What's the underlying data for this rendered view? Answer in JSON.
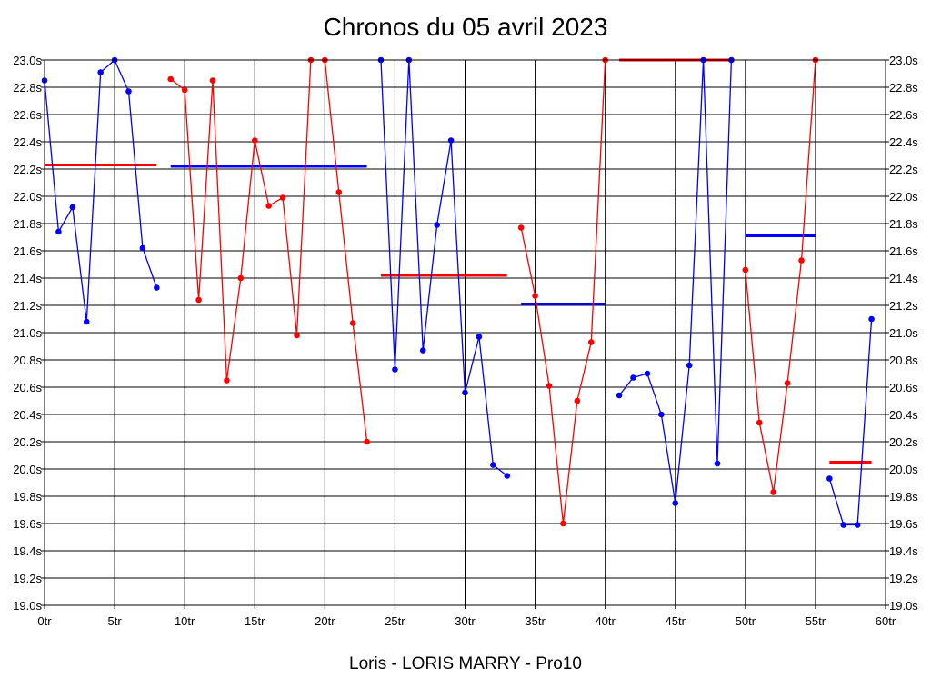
{
  "chart_data": {
    "type": "line",
    "title": "Chronos du 05 avril 2023",
    "xlabel": "Loris - LORIS MARRY - Pro10",
    "ylabel": "",
    "xlim": [
      0,
      60
    ],
    "ylim": [
      19.0,
      23.0
    ],
    "x_ticks": [
      0,
      5,
      10,
      15,
      20,
      25,
      30,
      35,
      40,
      45,
      50,
      55,
      60
    ],
    "x_tick_labels": [
      "0tr",
      "5tr",
      "10tr",
      "15tr",
      "20tr",
      "25tr",
      "30tr",
      "35tr",
      "40tr",
      "45tr",
      "50tr",
      "55tr",
      "60tr"
    ],
    "y_ticks": [
      19.0,
      19.2,
      19.4,
      19.6,
      19.8,
      20.0,
      20.2,
      20.4,
      20.6,
      20.8,
      21.0,
      21.2,
      21.4,
      21.6,
      21.8,
      22.0,
      22.2,
      22.4,
      22.6,
      22.8,
      23.0
    ],
    "y_tick_labels": [
      "19.0s",
      "19.2s",
      "19.4s",
      "19.6s",
      "19.8s",
      "20.0s",
      "20.2s",
      "20.4s",
      "20.6s",
      "20.8s",
      "21.0s",
      "21.2s",
      "21.4s",
      "21.6s",
      "21.8s",
      "22.0s",
      "22.2s",
      "22.4s",
      "22.6s",
      "22.8s",
      "23.0s"
    ],
    "grid": true,
    "series": [
      {
        "color": "#0000ff",
        "x": [
          0,
          1,
          2,
          3,
          4,
          5,
          6,
          7,
          8
        ],
        "y": [
          22.85,
          21.74,
          21.92,
          21.08,
          22.91,
          23.0,
          22.77,
          21.62,
          21.33
        ]
      },
      {
        "color": "#ff0000",
        "x": [
          9,
          10,
          11,
          12,
          13,
          14,
          15,
          16,
          17,
          18,
          19,
          20,
          21,
          22,
          23
        ],
        "y": [
          22.86,
          22.78,
          21.24,
          22.85,
          20.65,
          21.4,
          22.41,
          21.93,
          21.99,
          20.98,
          23.0,
          23.0,
          22.03,
          21.07,
          20.2
        ]
      },
      {
        "color": "#0000ff",
        "x": [
          24,
          25,
          26,
          27,
          28,
          29,
          30,
          31,
          32,
          33
        ],
        "y": [
          23.0,
          20.73,
          23.0,
          20.87,
          21.79,
          22.41,
          20.56,
          20.97,
          20.03,
          19.95
        ]
      },
      {
        "color": "#ff0000",
        "x": [
          34,
          35,
          36,
          37,
          38,
          39,
          40
        ],
        "y": [
          21.77,
          21.27,
          20.61,
          19.6,
          20.5,
          20.93,
          23.0
        ]
      },
      {
        "color": "#0000ff",
        "x": [
          41,
          42,
          43,
          44,
          45,
          46,
          47,
          48,
          49
        ],
        "y": [
          20.54,
          20.67,
          20.7,
          20.4,
          19.75,
          20.76,
          23.0,
          20.04,
          23.0
        ]
      },
      {
        "color": "#ff0000",
        "x": [
          50,
          51,
          52,
          53,
          54,
          55
        ],
        "y": [
          21.46,
          20.34,
          19.83,
          20.63,
          21.53,
          23.0
        ]
      },
      {
        "color": "#0000ff",
        "x": [
          56,
          57,
          58,
          59
        ],
        "y": [
          19.93,
          19.59,
          19.59,
          21.1
        ]
      }
    ],
    "averages": [
      {
        "color": "#ff0000",
        "x_start": 0,
        "x_end": 8,
        "y": 22.23
      },
      {
        "color": "#0000ff",
        "x_start": 9,
        "x_end": 23,
        "y": 22.22
      },
      {
        "color": "#ff0000",
        "x_start": 24,
        "x_end": 33,
        "y": 21.42
      },
      {
        "color": "#0000ff",
        "x_start": 34,
        "x_end": 40,
        "y": 21.21
      },
      {
        "color": "#ff0000",
        "x_start": 41,
        "x_end": 49,
        "y": 23.0
      },
      {
        "color": "#0000ff",
        "x_start": 50,
        "x_end": 55,
        "y": 21.71
      },
      {
        "color": "#ff0000",
        "x_start": 56,
        "x_end": 59,
        "y": 20.05
      }
    ]
  }
}
